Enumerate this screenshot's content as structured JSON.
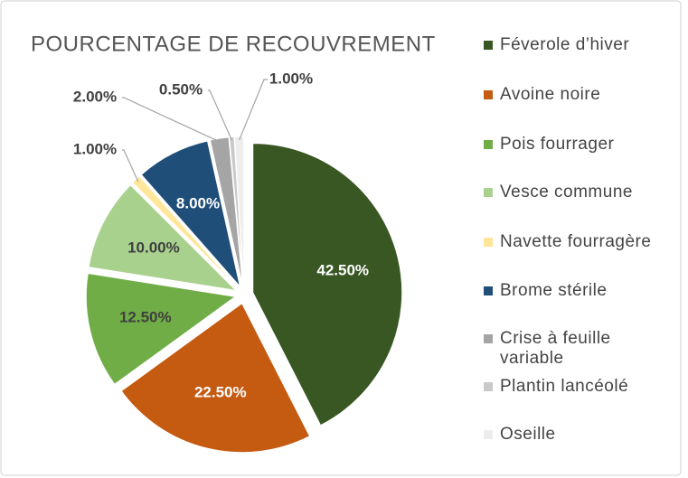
{
  "chart_data": {
    "type": "pie",
    "title": "POURCENTAGE DE RECOUVREMENT",
    "categories": [
      "Féverole d’hiver",
      "Avoine noire",
      "Pois fourrager",
      "Vesce commune",
      "Navette fourragère",
      "Brome stérile",
      "Crise à feuille variable",
      "Plantin lancéolé",
      "Oseille"
    ],
    "values": [
      42.5,
      22.5,
      12.5,
      10,
      1,
      8,
      2,
      0.5,
      1
    ],
    "value_labels": [
      "42.50%",
      "22.50%",
      "12.50%",
      "10.00%",
      "1.00%",
      "8.00%",
      "2.00%",
      "0.50%",
      "1.00%"
    ],
    "colors": [
      "#385723",
      "#c55a11",
      "#70ad47",
      "#a9d18e",
      "#ffe699",
      "#1f4e79",
      "#a5a5a5",
      "#c9c9c9",
      "#ededed"
    ],
    "legend": "right"
  }
}
